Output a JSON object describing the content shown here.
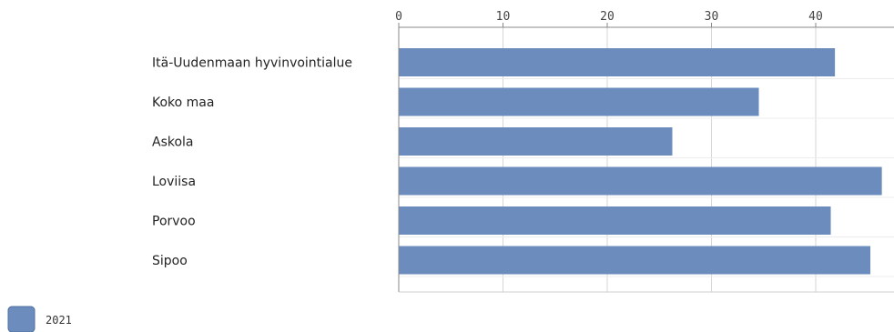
{
  "chart_data": {
    "type": "bar",
    "orientation": "horizontal",
    "categories": [
      "Itä-Uudenmaan hyvinvointialue",
      "Koko maa",
      "Askola",
      "Loviisa",
      "Porvoo",
      "Sipoo"
    ],
    "series": [
      {
        "name": "2021",
        "color": "#6b8cbd",
        "values": [
          41.8,
          34.5,
          26.2,
          46.3,
          41.4,
          45.2
        ]
      }
    ],
    "x_ticks": [
      "0",
      "10",
      "20",
      "30",
      "40"
    ],
    "xlim": [
      0,
      47.5
    ],
    "x_axis_position": "top",
    "grid": true,
    "legend_position": "bottom-left"
  }
}
